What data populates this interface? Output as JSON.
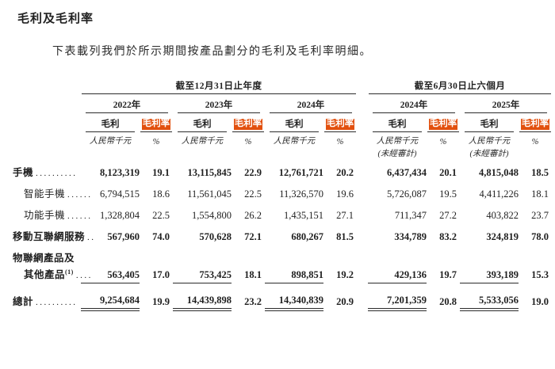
{
  "page": {
    "title": "毛利及毛利率",
    "intro": "下表載列我們於所示期間按產品劃分的毛利及毛利率明細。"
  },
  "table": {
    "highlight_color": "#e2500e",
    "period_groups": [
      {
        "label": "截至12月31日止年度"
      },
      {
        "label": "截至6月30日止六個月"
      }
    ],
    "columns": [
      {
        "year": "2022年",
        "gp": "毛利",
        "gpm": "毛利率",
        "unit": "人民幣千元",
        "pct_unit": "%",
        "note": ""
      },
      {
        "year": "2023年",
        "gp": "毛利",
        "gpm": "毛利率",
        "unit": "人民幣千元",
        "pct_unit": "%",
        "note": ""
      },
      {
        "year": "2024年",
        "gp": "毛利",
        "gpm": "毛利率",
        "unit": "人民幣千元",
        "pct_unit": "%",
        "note": ""
      },
      {
        "year": "2024年",
        "gp": "毛利",
        "gpm": "毛利率",
        "unit": "人民幣千元",
        "pct_unit": "%",
        "note": "(未經審計)"
      },
      {
        "year": "2025年",
        "gp": "毛利",
        "gpm": "毛利率",
        "unit": "人民幣千元",
        "pct_unit": "%",
        "note": "(未經審計)"
      }
    ],
    "rows": [
      {
        "label": "手機",
        "leaders": "..........",
        "values": [
          "8,123,319",
          "19.1",
          "13,115,845",
          "22.9",
          "12,761,721",
          "20.2",
          "6,437,434",
          "20.1",
          "4,815,048",
          "18.5"
        ]
      },
      {
        "label": "智能手機",
        "leaders": "......",
        "values": [
          "6,794,515",
          "18.6",
          "11,561,045",
          "22.5",
          "11,326,570",
          "19.6",
          "5,726,087",
          "19.5",
          "4,411,226",
          "18.1"
        ]
      },
      {
        "label": "功能手機",
        "leaders": "......",
        "values": [
          "1,328,804",
          "22.5",
          "1,554,800",
          "26.2",
          "1,435,151",
          "27.1",
          "711,347",
          "27.2",
          "403,822",
          "23.7"
        ]
      },
      {
        "label": "移動互聯網服務",
        "leaders": "..",
        "values": [
          "567,960",
          "74.0",
          "570,628",
          "72.1",
          "680,267",
          "81.5",
          "334,789",
          "83.2",
          "324,819",
          "78.0"
        ]
      },
      {
        "label": "物聯網產品及",
        "leaders": "",
        "values": []
      },
      {
        "label": "其他產品",
        "sup": "(1)",
        "leaders": "....",
        "values": [
          "563,405",
          "17.0",
          "753,425",
          "18.1",
          "898,851",
          "19.2",
          "429,136",
          "19.7",
          "393,189",
          "15.3"
        ]
      },
      {
        "label": "總計",
        "leaders": "..........",
        "values": [
          "9,254,684",
          "19.9",
          "14,439,898",
          "23.2",
          "14,340,839",
          "20.9",
          "7,201,359",
          "20.8",
          "5,533,056",
          "19.0"
        ]
      }
    ]
  }
}
